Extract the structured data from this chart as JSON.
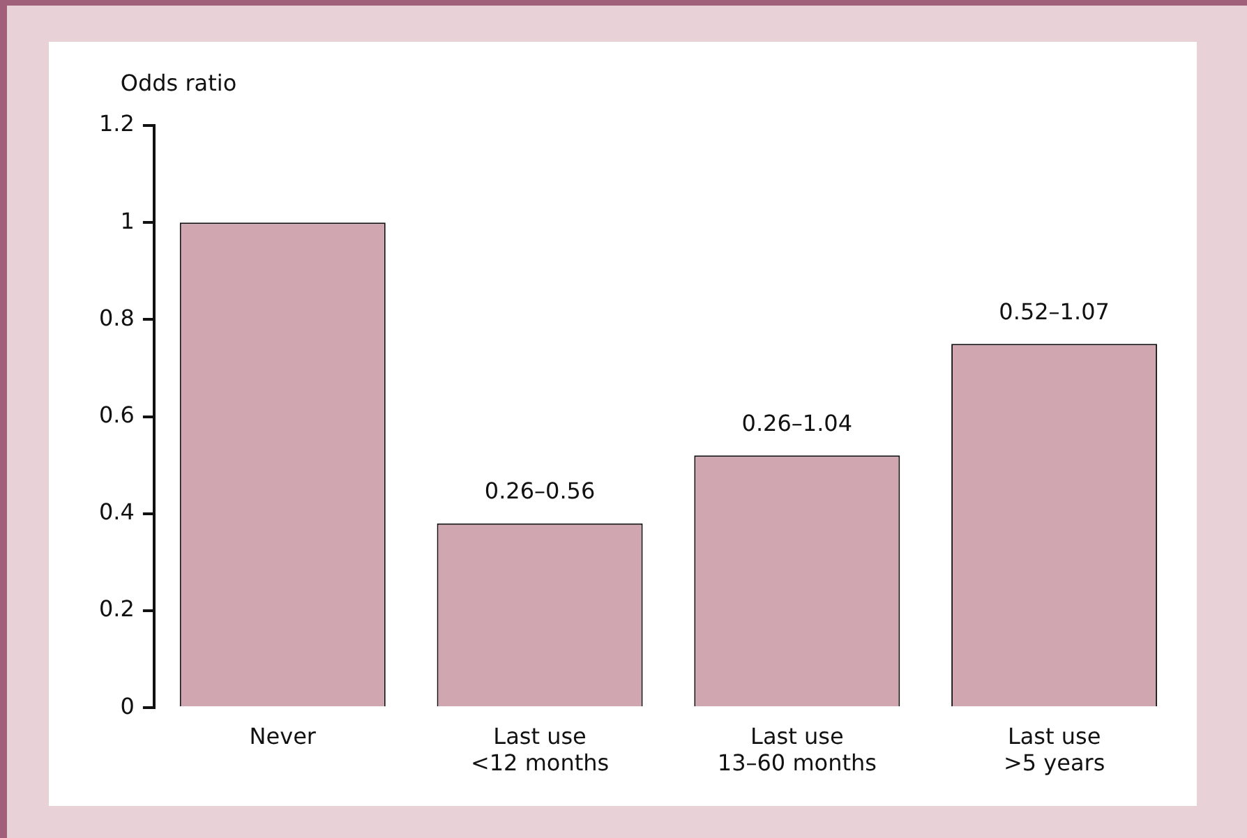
{
  "chart_data": {
    "type": "bar",
    "ylabel": "Odds ratio",
    "categories": [
      "Never",
      "Last use\n<12 months",
      "Last use\n13–60 months",
      "Last use\n>5 years"
    ],
    "values": [
      1.0,
      0.38,
      0.52,
      0.75
    ],
    "color": "#d0a6b0",
    "ylim": [
      0,
      1.2
    ],
    "yticks": [
      0,
      0.2,
      0.4,
      0.6,
      0.8,
      1,
      1.2
    ],
    "grid": false,
    "legend": false,
    "annotations": [
      {
        "text": "0.26–0.56",
        "x": "Last use\n<12 months",
        "y": 0.38
      },
      {
        "text": "0.26–1.04",
        "x": "Last use\n13–60 months",
        "y": 0.52
      },
      {
        "text": "0.52–1.07",
        "x": "Last use\n>5 years",
        "y": 0.75
      }
    ]
  }
}
